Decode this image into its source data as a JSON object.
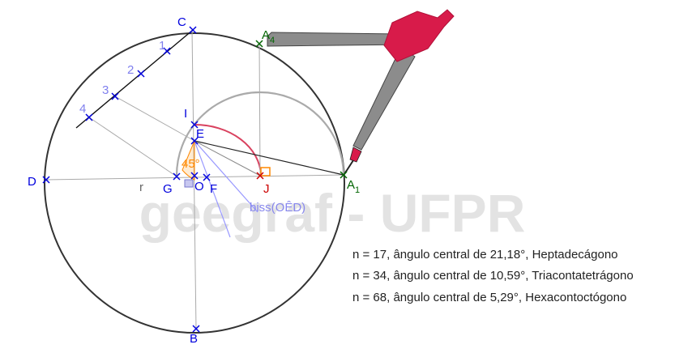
{
  "watermark": "geegraf - UFPR",
  "colors": {
    "point_blue": "#0000dd",
    "point_green": "#006400",
    "point_red": "#cc0000",
    "arc_red": "#d9425f",
    "angle_orange": "#ff8800",
    "bisector": "#9999ff",
    "helper_gray": "#999999",
    "circle": "#333333",
    "compass_tip": "#d81b4a"
  },
  "labels": {
    "C": "C",
    "D": "D",
    "B": "B",
    "G": "G",
    "O": "O",
    "F": "F",
    "E": "E",
    "I": "I",
    "J": "J",
    "A4": "A",
    "A4_sub": "4",
    "A1": "A",
    "A1_sub": "1",
    "r": "r",
    "n1": "1",
    "n2": "2",
    "n3": "3",
    "n4": "4",
    "angle": "45°",
    "bisector": "biss(OÊD)"
  },
  "info_lines": [
    "n = 17, ângulo central de 21,18°, Heptadecágono",
    "n = 34, ângulo central de 10,59°, Triacontatetrágono",
    "n = 68, ângulo central de 5,29°, Hexacontoctógono"
  ]
}
